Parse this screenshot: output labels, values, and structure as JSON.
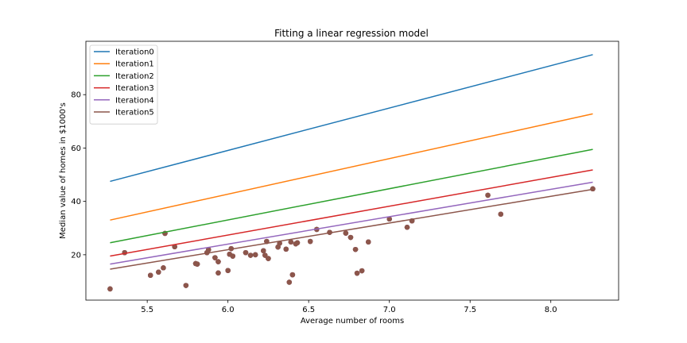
{
  "chart_data": {
    "type": "scatter",
    "title": "Fitting a linear regression model",
    "xlabel": "Average number of rooms",
    "ylabel": "Median value of homes in $1000's",
    "xlim": [
      5.12,
      8.42
    ],
    "ylim": [
      3.0,
      100.0
    ],
    "xticks": [
      5.5,
      6.0,
      6.5,
      7.0,
      7.5,
      8.0
    ],
    "yticks": [
      20,
      40,
      60,
      80
    ],
    "xtick_labels": [
      "5.5",
      "6.0",
      "6.5",
      "7.0",
      "7.5",
      "8.0"
    ],
    "ytick_labels": [
      "20",
      "40",
      "60",
      "80"
    ],
    "grid": false,
    "legend_position": "top-left",
    "point_color": "#8c564b",
    "points": [
      [
        5.27,
        7.2
      ],
      [
        5.36,
        20.8
      ],
      [
        5.52,
        12.3
      ],
      [
        5.57,
        13.5
      ],
      [
        5.6,
        15.1
      ],
      [
        5.61,
        28.0
      ],
      [
        5.67,
        23.0
      ],
      [
        5.74,
        8.5
      ],
      [
        5.8,
        16.7
      ],
      [
        5.81,
        16.5
      ],
      [
        5.87,
        20.8
      ],
      [
        5.88,
        21.9
      ],
      [
        5.92,
        18.9
      ],
      [
        5.94,
        17.4
      ],
      [
        5.94,
        13.2
      ],
      [
        6.0,
        14.1
      ],
      [
        6.01,
        20.2
      ],
      [
        6.02,
        22.3
      ],
      [
        6.03,
        19.5
      ],
      [
        6.11,
        20.8
      ],
      [
        6.14,
        19.8
      ],
      [
        6.17,
        20.0
      ],
      [
        6.22,
        21.5
      ],
      [
        6.23,
        19.8
      ],
      [
        6.24,
        25.0
      ],
      [
        6.25,
        18.6
      ],
      [
        6.31,
        22.9
      ],
      [
        6.32,
        24.3
      ],
      [
        6.36,
        22.1
      ],
      [
        6.38,
        9.7
      ],
      [
        6.39,
        24.8
      ],
      [
        6.4,
        12.5
      ],
      [
        6.42,
        24.1
      ],
      [
        6.43,
        24.5
      ],
      [
        6.51,
        25.0
      ],
      [
        6.55,
        29.5
      ],
      [
        6.63,
        28.4
      ],
      [
        6.73,
        28.1
      ],
      [
        6.76,
        26.5
      ],
      [
        6.79,
        22.0
      ],
      [
        6.8,
        13.1
      ],
      [
        6.83,
        14.0
      ],
      [
        6.87,
        24.8
      ],
      [
        7.0,
        33.4
      ],
      [
        7.11,
        30.3
      ],
      [
        7.14,
        32.7
      ],
      [
        7.61,
        42.3
      ],
      [
        7.69,
        35.2
      ],
      [
        8.26,
        44.7
      ]
    ],
    "series": [
      {
        "name": "Iteration0",
        "color": "#1f77b4",
        "x": [
          5.27,
          8.26
        ],
        "y": [
          47.5,
          95.0
        ]
      },
      {
        "name": "Iteration1",
        "color": "#ff7f0e",
        "x": [
          5.27,
          8.26
        ],
        "y": [
          33.0,
          72.8
        ]
      },
      {
        "name": "Iteration2",
        "color": "#2ca02c",
        "x": [
          5.27,
          8.26
        ],
        "y": [
          24.5,
          59.5
        ]
      },
      {
        "name": "Iteration3",
        "color": "#d62728",
        "x": [
          5.27,
          8.26
        ],
        "y": [
          19.5,
          51.8
        ]
      },
      {
        "name": "Iteration4",
        "color": "#9467bd",
        "x": [
          5.27,
          8.26
        ],
        "y": [
          16.5,
          47.2
        ]
      },
      {
        "name": "Iteration5",
        "color": "#8c564b",
        "x": [
          5.27,
          8.26
        ],
        "y": [
          14.6,
          44.5
        ]
      }
    ]
  }
}
